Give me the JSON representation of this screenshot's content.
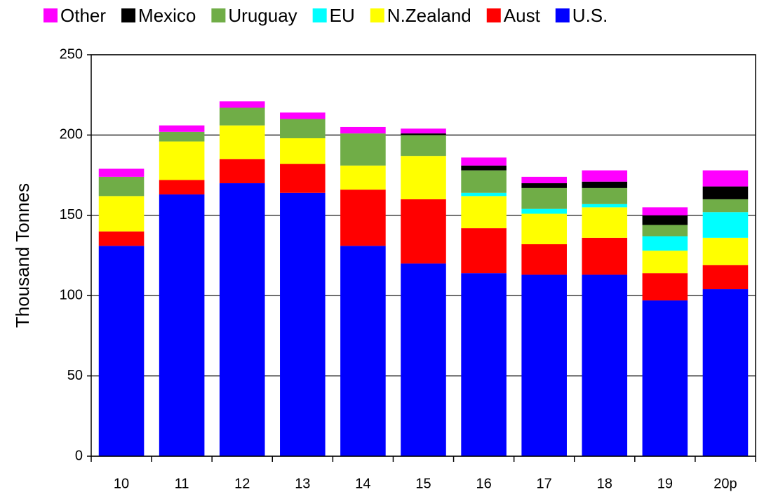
{
  "chart_data": {
    "type": "stacked_bar",
    "y_label": "Thousand Tonnes",
    "categories": [
      "10",
      "11",
      "12",
      "13",
      "14",
      "15",
      "16",
      "17",
      "18",
      "19",
      "20p"
    ],
    "series": [
      {
        "name": "U.S.",
        "color": "#0000ff",
        "values": [
          131,
          163,
          170,
          164,
          131,
          120,
          114,
          113,
          113,
          97,
          104
        ]
      },
      {
        "name": "Aust",
        "color": "#ff0000",
        "values": [
          9,
          9,
          15,
          18,
          35,
          40,
          28,
          19,
          23,
          17,
          15
        ]
      },
      {
        "name": "N.Zealand",
        "color": "#ffff00",
        "values": [
          22,
          24,
          21,
          16,
          15,
          27,
          20,
          19,
          19,
          14,
          17
        ]
      },
      {
        "name": "EU",
        "color": "#00ffff",
        "values": [
          0,
          0,
          0,
          0,
          0,
          0,
          2,
          3,
          2,
          9,
          16
        ]
      },
      {
        "name": "Uruguay",
        "color": "#70ad47",
        "values": [
          12,
          6,
          11,
          12,
          20,
          13,
          14,
          13,
          10,
          7,
          8
        ]
      },
      {
        "name": "Mexico",
        "color": "#000000",
        "values": [
          0,
          0,
          0,
          0,
          0,
          1,
          3,
          3,
          4,
          6,
          8
        ]
      },
      {
        "name": "Other",
        "color": "#ff00ff",
        "values": [
          5,
          4,
          4,
          4,
          4,
          3,
          5,
          4,
          7,
          5,
          10
        ]
      }
    ],
    "ylim": [
      0,
      250
    ],
    "yticks": [
      0,
      50,
      100,
      150,
      200,
      250
    ],
    "grid": true
  }
}
